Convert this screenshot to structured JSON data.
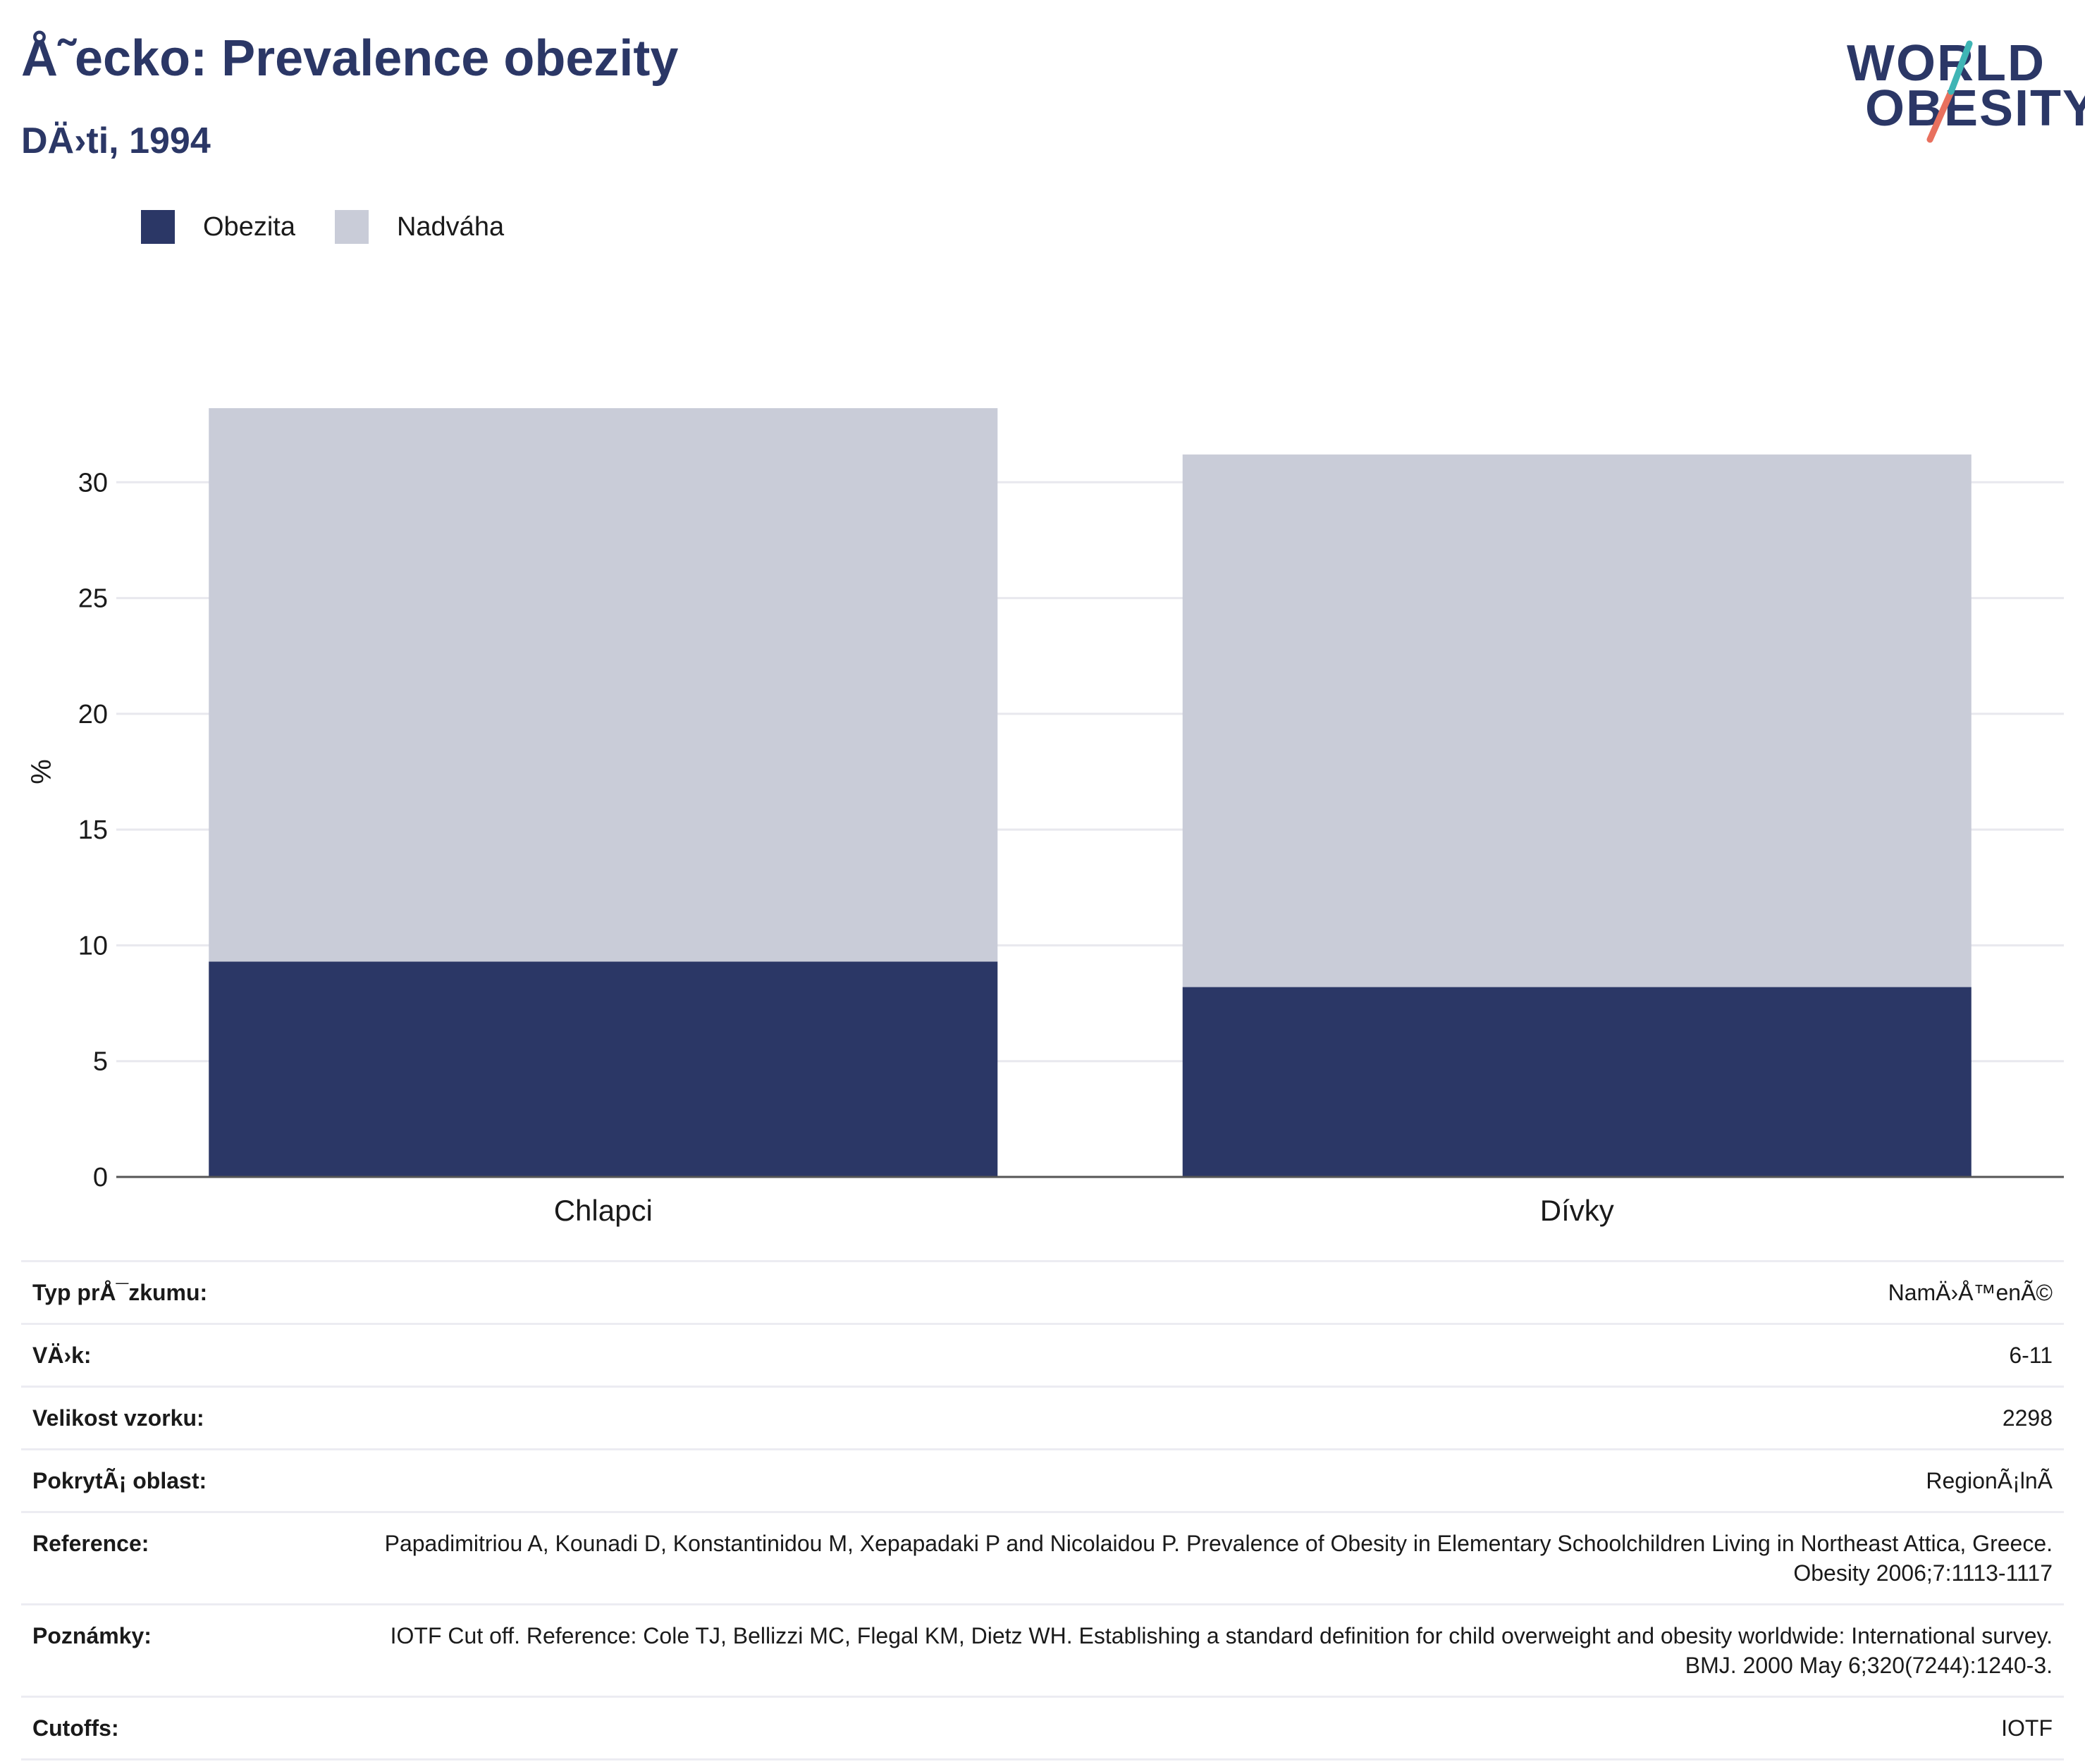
{
  "header": {
    "title": "Å˜ecko: Prevalence obezity",
    "subtitle": "DÄ›ti, 1994"
  },
  "logo": {
    "line1": "WORLD",
    "line2": "OBESITY"
  },
  "colors": {
    "brand": "#2b3766",
    "obesity": "#2b3766",
    "overweight": "#c9ccd8",
    "accent_teal": "#3fb5b5",
    "accent_coral": "#e8705e"
  },
  "legend": [
    {
      "label": "Obezita",
      "color": "#2b3766"
    },
    {
      "label": "Nadváha",
      "color": "#c9ccd8"
    }
  ],
  "chart_data": {
    "type": "bar",
    "stacked": true,
    "categories": [
      "Chlapci",
      "Dívky"
    ],
    "series": [
      {
        "name": "Obezita",
        "values": [
          9.3,
          8.2
        ],
        "color": "#2b3766"
      },
      {
        "name": "Nadváha",
        "values": [
          23.9,
          23.0
        ],
        "color": "#c9ccd8"
      }
    ],
    "xlabel": "",
    "ylabel": "%",
    "ylim": [
      0,
      35
    ],
    "yticks": [
      0,
      5,
      10,
      15,
      20,
      25,
      30
    ],
    "grid": true,
    "legend_position": "top-left"
  },
  "info": [
    {
      "label": "Typ prÅ¯zkumu:",
      "value": "NamÄ›Å™enÃ©"
    },
    {
      "label": "VÄ›k:",
      "value": "6-11"
    },
    {
      "label": "Velikost vzorku:",
      "value": "2298"
    },
    {
      "label": "PokrytÃ¡ oblast:",
      "value": "RegionÃ¡lnÃ"
    },
    {
      "label": "Reference:",
      "value": "Papadimitriou A, Kounadi D, Konstantinidou M, Xepapadaki P and Nicolaidou P. Prevalence of Obesity in Elementary Schoolchildren Living in Northeast Attica, Greece. Obesity 2006;7:1113-1117"
    },
    {
      "label": "Poznámky:",
      "value": "IOTF Cut off. Reference: Cole TJ, Bellizzi MC, Flegal KM, Dietz WH. Establishing a standard definition for child overweight and obesity worldwide: International survey. BMJ. 2000 May 6;320(7244):1240-3."
    },
    {
      "label": "Cutoffs:",
      "value": "IOTF"
    }
  ]
}
